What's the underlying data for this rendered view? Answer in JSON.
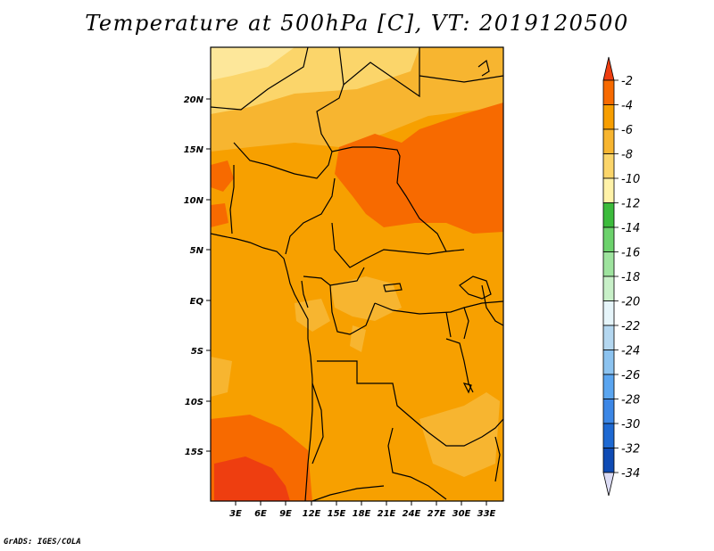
{
  "title": "Temperature at 500hPa [C], VT: 2019120500",
  "credit": "GrADS: IGES/COLA",
  "map": {
    "lon_labels": [
      "3E",
      "6E",
      "9E",
      "12E",
      "15E",
      "18E",
      "21E",
      "24E",
      "27E",
      "30E",
      "33E"
    ],
    "lat_labels": [
      "20N",
      "15N",
      "10N",
      "5N",
      "EQ",
      "5S",
      "10S",
      "15S"
    ]
  },
  "colorbar": {
    "labels": [
      "-2",
      "-4",
      "-6",
      "-8",
      "-10",
      "-12",
      "-14",
      "-16",
      "-18",
      "-20",
      "-22",
      "-24",
      "-26",
      "-28",
      "-30",
      "-32",
      "-34"
    ],
    "colors": [
      "#ee3e10",
      "#f76a00",
      "#f79e00",
      "#f7b530",
      "#fbd56a",
      "#fff2a8",
      "#3cbb3c",
      "#6cd26c",
      "#9ee39e",
      "#c8f0c8",
      "#e6f5fa",
      "#b4d7f0",
      "#8cc3f0",
      "#5aa5f0",
      "#3c87e6",
      "#1e69d2",
      "#0f4bb4",
      "#0a1e78",
      "#dcdcf5"
    ]
  }
}
